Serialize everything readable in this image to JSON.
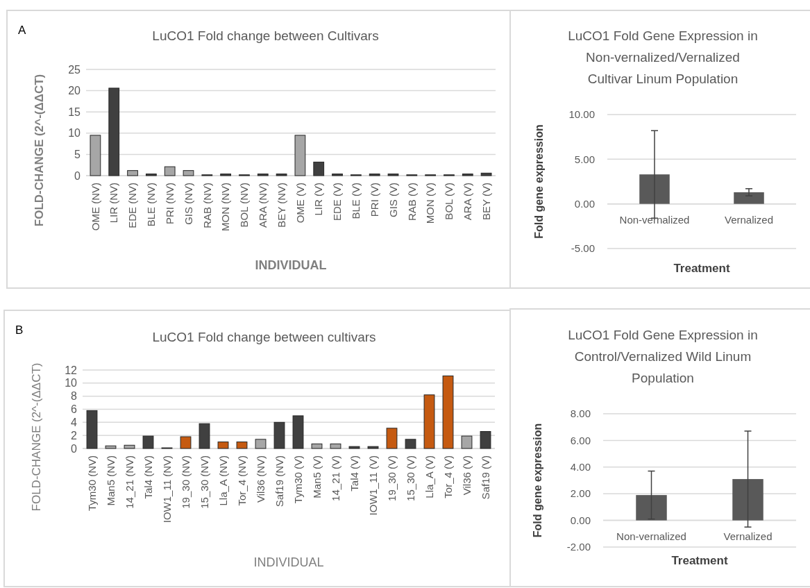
{
  "chart_data": [
    {
      "type": "bar",
      "title": "LuCO1 Fold change between  Cultivars",
      "xlabel": "INDIVIDUAL",
      "ylabel": "FOLD-CHANGE (2^-(ΔΔCT)",
      "annotations": [
        "A"
      ],
      "categories": [
        "OME (NV)",
        "LIR (NV)",
        "EDE (NV)",
        "BLE (NV)",
        "PRI (NV)",
        "GIS (NV)",
        "RAB (NV)",
        "MON (NV)",
        "BOL (NV)",
        "ARA (NV)",
        "BEY (NV)",
        "OME (V)",
        "LIR (V)",
        "EDE (V)",
        "BLE (V)",
        "PRI (V)",
        "GIS (V)",
        "RAB (V)",
        "MON (V)",
        "BOL (V)",
        "ARA (V)",
        "BEY (V)"
      ],
      "values": [
        9.5,
        20.6,
        1.2,
        0.4,
        2.1,
        1.2,
        0.2,
        0.4,
        0.2,
        0.4,
        0.4,
        9.5,
        3.2,
        0.4,
        0.2,
        0.4,
        0.4,
        0.2,
        0.2,
        0.2,
        0.4,
        0.6
      ],
      "colors": [
        "#a6a6a6",
        "#404040",
        "#a6a6a6",
        "#404040",
        "#a6a6a6",
        "#a6a6a6",
        "#404040",
        "#404040",
        "#404040",
        "#404040",
        "#404040",
        "#a6a6a6",
        "#404040",
        "#404040",
        "#404040",
        "#404040",
        "#404040",
        "#404040",
        "#404040",
        "#404040",
        "#404040",
        "#404040"
      ],
      "ylim": [
        0,
        25
      ],
      "yticks": [
        0,
        5,
        10,
        15,
        20,
        25
      ],
      "grid": "y"
    },
    {
      "type": "bar",
      "title": "LuCO1 Fold Gene Expression in Non-vernalized/Vernalized Cultivar Linum Population",
      "xlabel": "Treatment",
      "ylabel": "Fold gene expression",
      "categories": [
        "Non-vernalized",
        "Vernalized"
      ],
      "values": [
        3.3,
        1.3
      ],
      "errors": [
        4.9,
        0.4
      ],
      "color": "#595959",
      "ylim": [
        -5,
        10
      ],
      "yticks": [
        {
          "value": -5,
          "label": "-5.00"
        },
        {
          "value": 0,
          "label": "0.00"
        },
        {
          "value": 5,
          "label": "5.00"
        },
        {
          "value": 10,
          "label": "10.00"
        }
      ],
      "grid": "y"
    },
    {
      "type": "bar",
      "title": "LuCO1 Fold change between  cultivars",
      "xlabel": "INDIVIDUAL",
      "ylabel": "FOLD-CHANGE (2^-(ΔΔCT)",
      "annotations": [
        "B"
      ],
      "categories": [
        "Tym30 (NV)",
        "Man5 (NV)",
        "14_21 (NV)",
        "Tal4 (NV)",
        "IOW1_11 (NV)",
        "19_30 (NV)",
        "15_30 (NV)",
        "Lla_A (NV)",
        "Tor_4 (NV)",
        "Vil36 (NV)",
        "Saf19 (NV)",
        "Tym30 (V)",
        "Man5 (V)",
        "14_21 (V)",
        "Tal4 (V)",
        "IOW1_11 (V)",
        "19_30 (V)",
        "15_30 (V)",
        "Lla_A (V)",
        "Tor_4 (V)",
        "Vil36 (V)",
        "Saf19 (V)"
      ],
      "values": [
        5.8,
        0.4,
        0.5,
        1.9,
        0.1,
        1.8,
        3.8,
        1.0,
        1.0,
        1.4,
        4.0,
        5.0,
        0.7,
        0.7,
        0.3,
        0.3,
        3.1,
        1.4,
        8.2,
        11.1,
        1.9,
        2.6
      ],
      "colors": [
        "#404040",
        "#a6a6a6",
        "#a6a6a6",
        "#404040",
        "#a6a6a6",
        "#c55a11",
        "#404040",
        "#c55a11",
        "#c55a11",
        "#a6a6a6",
        "#404040",
        "#404040",
        "#a6a6a6",
        "#a6a6a6",
        "#404040",
        "#404040",
        "#c55a11",
        "#404040",
        "#c55a11",
        "#c55a11",
        "#a6a6a6",
        "#404040"
      ],
      "ylim": [
        0,
        12
      ],
      "yticks": [
        0,
        2,
        4,
        6,
        8,
        10,
        12
      ],
      "grid": "y"
    },
    {
      "type": "bar",
      "title": "LuCO1 Fold Gene Expression in Control/Vernalized Wild Linum Population",
      "xlabel": "Treatment",
      "ylabel": "Fold gene expression",
      "categories": [
        "Non-vernalized",
        "Vernalized"
      ],
      "values": [
        1.9,
        3.1
      ],
      "errors": [
        1.8,
        3.6
      ],
      "color": "#595959",
      "ylim": [
        -2,
        8
      ],
      "yticks": [
        {
          "value": -2,
          "label": "-2.00"
        },
        {
          "value": 0,
          "label": "0.00"
        },
        {
          "value": 2,
          "label": "2.00"
        },
        {
          "value": 4,
          "label": "4.00"
        },
        {
          "value": 6,
          "label": "6.00"
        },
        {
          "value": 8,
          "label": "8.00"
        }
      ],
      "grid": "y"
    }
  ]
}
